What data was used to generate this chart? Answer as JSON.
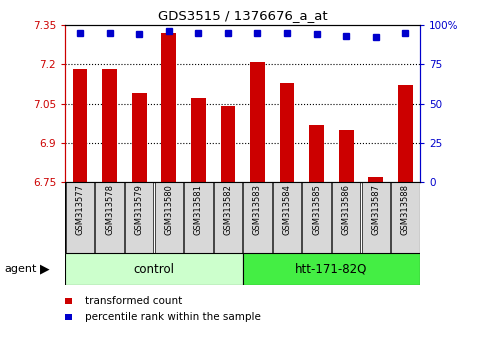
{
  "title": "GDS3515 / 1376676_a_at",
  "samples": [
    "GSM313577",
    "GSM313578",
    "GSM313579",
    "GSM313580",
    "GSM313581",
    "GSM313582",
    "GSM313583",
    "GSM313584",
    "GSM313585",
    "GSM313586",
    "GSM313587",
    "GSM313588"
  ],
  "bar_values": [
    7.18,
    7.18,
    7.09,
    7.32,
    7.07,
    7.04,
    7.21,
    7.13,
    6.97,
    6.95,
    6.77,
    7.12
  ],
  "percentile_values": [
    95,
    95,
    94,
    96,
    95,
    95,
    95,
    95,
    94,
    93,
    92,
    95
  ],
  "bar_color": "#cc0000",
  "dot_color": "#0000cc",
  "ylim_left": [
    6.75,
    7.35
  ],
  "ylim_right": [
    0,
    100
  ],
  "yticks_left": [
    6.75,
    6.9,
    7.05,
    7.2,
    7.35
  ],
  "yticks_right": [
    0,
    25,
    50,
    75,
    100
  ],
  "ytick_labels_left": [
    "6.75",
    "6.9",
    "7.05",
    "7.2",
    "7.35"
  ],
  "ytick_labels_right": [
    "0",
    "25",
    "50",
    "75",
    "100%"
  ],
  "grid_values": [
    6.9,
    7.05,
    7.2
  ],
  "control_label": "control",
  "treatment_label": "htt-171-82Q",
  "control_count": 6,
  "treatment_count": 6,
  "agent_label": "agent",
  "legend_bar_label": "transformed count",
  "legend_dot_label": "percentile rank within the sample",
  "control_bg": "#ccffcc",
  "treatment_bg": "#44ee44",
  "sample_bg": "#d8d8d8",
  "left_tick_color": "#cc0000",
  "right_tick_color": "#0000cc",
  "bar_width": 0.5
}
